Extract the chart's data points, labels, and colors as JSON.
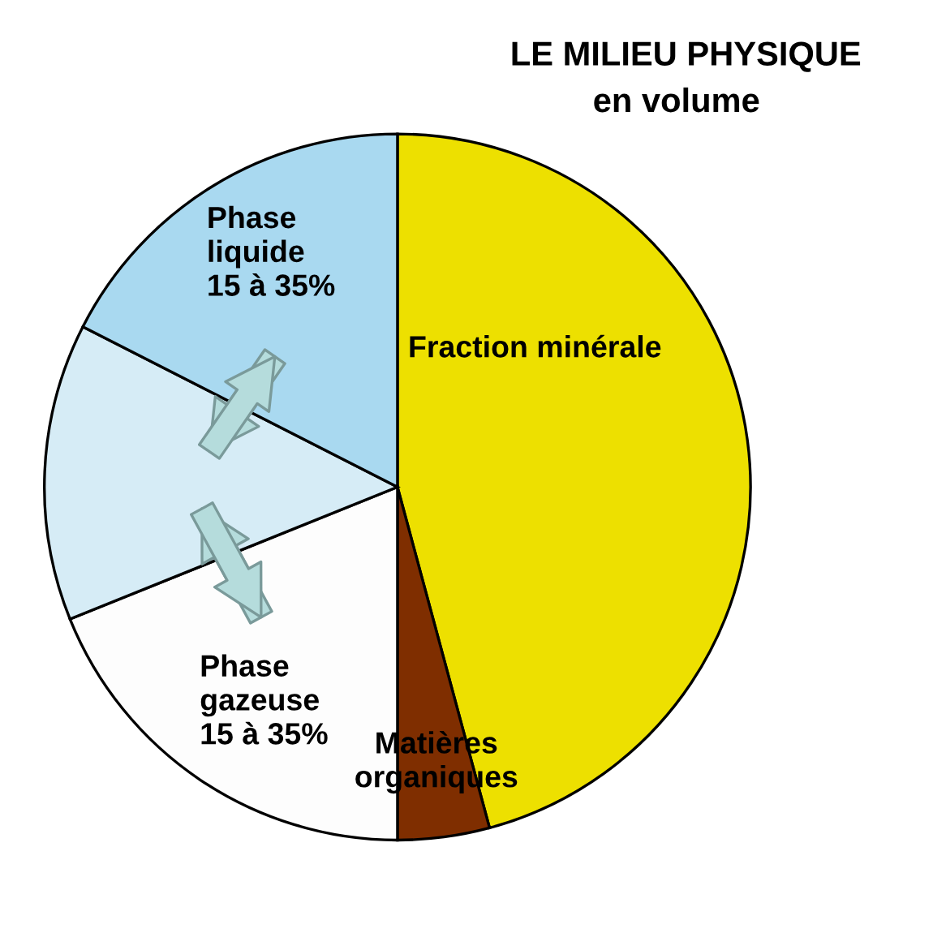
{
  "chart_data": {
    "type": "pie",
    "title": "LE MILIEU PHYSIQUE",
    "subtitle": "en volume",
    "categories": [
      "Fraction minérale",
      "Matières\norganiques",
      "Phase\ngazeuse\n15 à 35%",
      null,
      "Phase\nliquide\n15 à 35%"
    ],
    "values": [
      45.8,
      4.2,
      18.9,
      13.6,
      17.5
    ],
    "colors": [
      "#ede000",
      "#7f2e00",
      "#fdfdfd",
      "#d6ecf6",
      "#a9d9f0"
    ]
  }
}
